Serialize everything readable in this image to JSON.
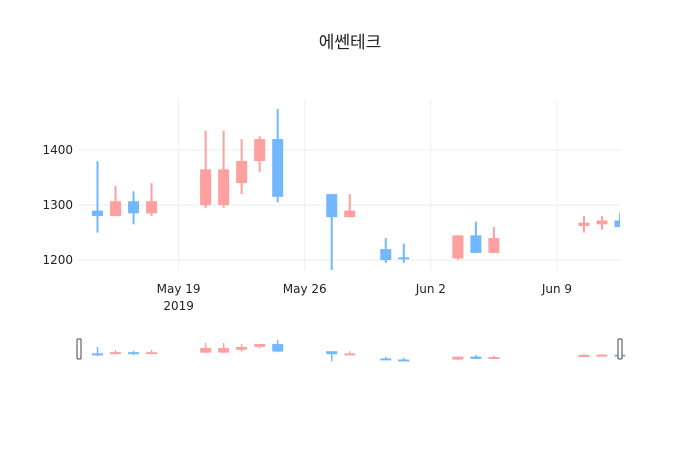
{
  "chart_data": {
    "type": "candlestick",
    "title": "에쎈테크",
    "xlabel": "",
    "ylabel": "",
    "grid": true,
    "legend": false,
    "range_slider": true,
    "ylim": [
      1182,
      1491
    ],
    "xlim": [
      "2019-05-13T10:00",
      "2019-06-12T12:00"
    ],
    "y_ticks": [
      1200,
      1300,
      1400
    ],
    "x_ticks": [
      {
        "date": "2019-05-19",
        "label": "May 19",
        "sublabel": "2019"
      },
      {
        "date": "2019-05-26",
        "label": "May 26",
        "sublabel": ""
      },
      {
        "date": "2019-06-02",
        "label": "Jun 2",
        "sublabel": ""
      },
      {
        "date": "2019-06-09",
        "label": "Jun 9",
        "sublabel": ""
      }
    ],
    "colors": {
      "increasing": "#ffa0a0",
      "decreasing": "#72b8ff",
      "grid": "#eeeeee",
      "slider_border": "#444444"
    },
    "x": [
      "2019-05-14",
      "2019-05-15",
      "2019-05-16",
      "2019-05-17",
      "2019-05-20",
      "2019-05-21",
      "2019-05-22",
      "2019-05-23",
      "2019-05-24",
      "2019-05-27",
      "2019-05-28",
      "2019-05-30",
      "2019-05-31",
      "2019-06-03",
      "2019-06-04",
      "2019-06-05",
      "2019-06-10",
      "2019-06-11",
      "2019-06-12"
    ],
    "open": [
      1290,
      1280,
      1307,
      1285,
      1300,
      1300,
      1340,
      1380,
      1420,
      1320,
      1278,
      1220,
      1205,
      1203,
      1245,
      1213,
      1262,
      1265,
      1272
    ],
    "high": [
      1380,
      1335,
      1325,
      1340,
      1435,
      1435,
      1420,
      1425,
      1475,
      1320,
      1320,
      1240,
      1230,
      1245,
      1270,
      1260,
      1280,
      1280,
      1285
    ],
    "low": [
      1250,
      1280,
      1265,
      1280,
      1295,
      1295,
      1320,
      1360,
      1305,
      1180,
      1278,
      1195,
      1195,
      1200,
      1213,
      1213,
      1250,
      1255,
      1260
    ],
    "close": [
      1280,
      1307,
      1285,
      1307,
      1365,
      1365,
      1380,
      1420,
      1315,
      1278,
      1290,
      1200,
      1202,
      1245,
      1213,
      1240,
      1268,
      1272,
      1260
    ]
  }
}
